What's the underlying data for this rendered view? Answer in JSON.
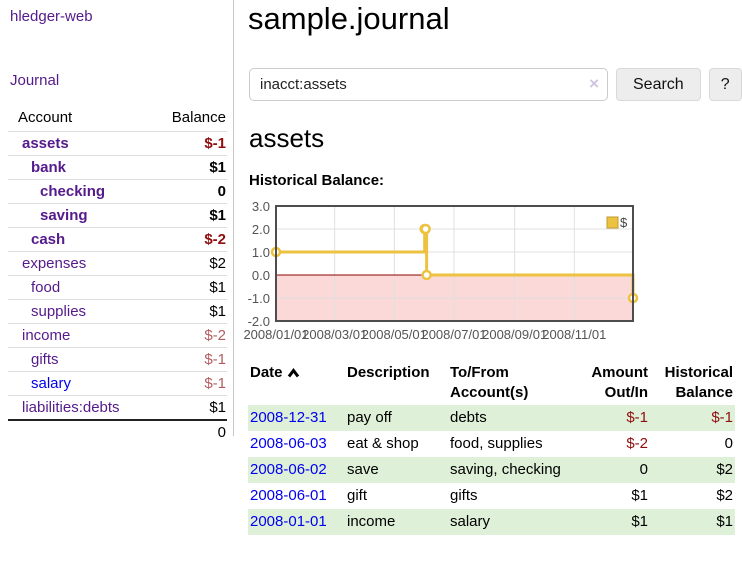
{
  "colors": {
    "link_purple": "#551a8b",
    "link_blue": "#0000ee",
    "negative_strong": "#8f0e0e",
    "negative_soft": "#b35f5f",
    "row_stripe_green": "#dff0d8"
  },
  "sidebar": {
    "app_title": "hledger-web",
    "nav_journal_label": "Journal",
    "accounts": {
      "header_account": "Account",
      "header_balance": "Balance",
      "rows": [
        {
          "name": "assets",
          "depth": 0,
          "bold": true,
          "link": "visited",
          "amount": "$-1",
          "amount_style": "neg-strong"
        },
        {
          "name": "bank",
          "depth": 1,
          "bold": true,
          "link": "visited",
          "amount": "$1",
          "amount_style": "strong"
        },
        {
          "name": "checking",
          "depth": 2,
          "bold": true,
          "link": "visited",
          "amount": "0",
          "amount_style": "strong"
        },
        {
          "name": "saving",
          "depth": 2,
          "bold": true,
          "link": "visited",
          "amount": "$1",
          "amount_style": "strong"
        },
        {
          "name": "cash",
          "depth": 1,
          "bold": true,
          "link": "visited",
          "amount": "$-2",
          "amount_style": "neg-strong"
        },
        {
          "name": "expenses",
          "depth": 0,
          "bold": false,
          "link": "visited",
          "amount": "$2",
          "amount_style": "plain"
        },
        {
          "name": "food",
          "depth": 1,
          "bold": false,
          "link": "visited",
          "amount": "$1",
          "amount_style": "plain"
        },
        {
          "name": "supplies",
          "depth": 1,
          "bold": false,
          "link": "visited",
          "amount": "$1",
          "amount_style": "plain"
        },
        {
          "name": "income",
          "depth": 0,
          "bold": false,
          "link": "visited",
          "amount": "$-2",
          "amount_style": "neg-soft"
        },
        {
          "name": "gifts",
          "depth": 1,
          "bold": false,
          "link": "visited",
          "amount": "$-1",
          "amount_style": "neg-soft"
        },
        {
          "name": "salary",
          "depth": 1,
          "bold": false,
          "link": "unvisited",
          "amount": "$-1",
          "amount_style": "neg-soft"
        },
        {
          "name": "liabilities:debts",
          "depth": 0,
          "bold": false,
          "link": "visited",
          "amount": "$1",
          "amount_style": "plain"
        }
      ],
      "total": "0"
    }
  },
  "header": {
    "title": "sample.journal"
  },
  "search": {
    "value": "inacct:assets",
    "clear_icon": "×",
    "button_label": "Search",
    "help_label": "?"
  },
  "account_page": {
    "heading": "assets",
    "chart_label": "Historical Balance:"
  },
  "chart_data": {
    "type": "line",
    "step": "after",
    "title": "Historical Balance:",
    "series": [
      {
        "name": "$",
        "points": [
          [
            "2008-01-01",
            1
          ],
          [
            "2008-06-01",
            2
          ],
          [
            "2008-06-02",
            2
          ],
          [
            "2008-06-03",
            0
          ],
          [
            "2008-12-31",
            -1
          ]
        ]
      }
    ],
    "ylim": [
      -2,
      3
    ],
    "yticks": [
      {
        "label": "3.0",
        "value": 3
      },
      {
        "label": "2.0",
        "value": 2
      },
      {
        "label": "1.0",
        "value": 1
      },
      {
        "label": "0.0",
        "value": 0
      },
      {
        "label": "-1.0",
        "value": -1
      },
      {
        "label": "-2.0",
        "value": -2
      }
    ],
    "xticks": [
      {
        "label": "2008/01/01",
        "date": "2008-01-01"
      },
      {
        "label": "2008/03/01",
        "date": "2008-03-01"
      },
      {
        "label": "2008/05/01",
        "date": "2008-05-01"
      },
      {
        "label": "2008/07/01",
        "date": "2008-07-01"
      },
      {
        "label": "2008/09/01",
        "date": "2008-09-01"
      },
      {
        "label": "2008/11/01",
        "date": "2008-11-01"
      }
    ],
    "grid": true,
    "legend_position": "top-right",
    "colors": {
      "line": "#edc240",
      "legend_border": "#bf9b30",
      "negative_region": "#fcd9d9",
      "zero_line": "#8b0000",
      "grid": "#e0e0e0",
      "border": "#4d4d4d",
      "axis_text": "#545454"
    }
  },
  "register_table": {
    "headers": [
      {
        "key": "date",
        "label": "Date",
        "sortable": true,
        "sort": "asc",
        "align": "left"
      },
      {
        "key": "description",
        "label": "Description",
        "sortable": false,
        "align": "left"
      },
      {
        "key": "accounts",
        "label": "To/From Account(s)",
        "sortable": false,
        "align": "left"
      },
      {
        "key": "amount",
        "label": "Amount Out/In",
        "sortable": false,
        "align": "right"
      },
      {
        "key": "balance",
        "label": "Historical Balance",
        "sortable": false,
        "align": "right"
      }
    ],
    "rows": [
      {
        "date": "2008-12-31",
        "description": "pay off",
        "accounts": "debts",
        "amount": "$-1",
        "amount_negative": true,
        "balance": "$-1",
        "balance_negative": true
      },
      {
        "date": "2008-06-03",
        "description": "eat & shop",
        "accounts": "food, supplies",
        "amount": "$-2",
        "amount_negative": true,
        "balance": "0",
        "balance_negative": false
      },
      {
        "date": "2008-06-02",
        "description": "save",
        "accounts": "saving, checking",
        "amount": "0",
        "amount_negative": false,
        "balance": "$2",
        "balance_negative": false
      },
      {
        "date": "2008-06-01",
        "description": "gift",
        "accounts": "gifts",
        "amount": "$1",
        "amount_negative": false,
        "balance": "$2",
        "balance_negative": false
      },
      {
        "date": "2008-01-01",
        "description": "income",
        "accounts": "salary",
        "amount": "$1",
        "amount_negative": false,
        "balance": "$1",
        "balance_negative": false
      }
    ]
  }
}
